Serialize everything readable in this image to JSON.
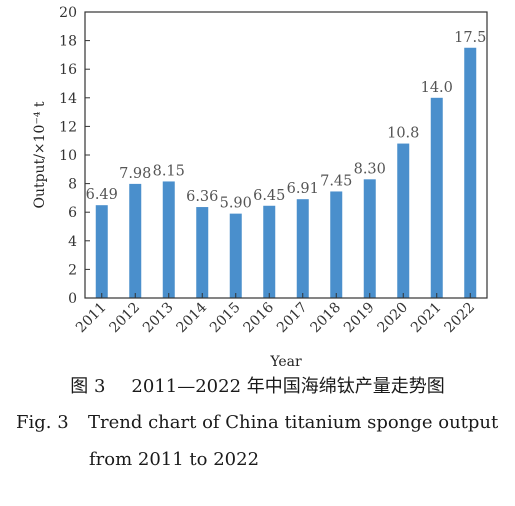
{
  "chart_data": {
    "type": "bar",
    "categories": [
      "2011",
      "2012",
      "2013",
      "2014",
      "2015",
      "2016",
      "2017",
      "2018",
      "2019",
      "2020",
      "2021",
      "2022"
    ],
    "values": [
      6.49,
      7.98,
      8.15,
      6.36,
      5.9,
      6.45,
      6.91,
      7.45,
      8.3,
      10.8,
      14.0,
      17.5
    ],
    "value_labels": [
      "6.49",
      "7.98",
      "8.15",
      "6.36",
      "5.90",
      "6.45",
      "6.91",
      "7.45",
      "8.30",
      "10.8",
      "14.0",
      "17.5"
    ],
    "ylim": [
      0,
      20
    ],
    "yticks": [
      "0",
      "2",
      "4",
      "6",
      "8",
      "10",
      "12",
      "14",
      "16",
      "18",
      "20"
    ],
    "ylabel": "Output/×10⁻⁴ t",
    "xlabel": "Year",
    "bar_color": "#4a8fcc",
    "grid": false
  },
  "caption": {
    "cn_num": "图 3",
    "cn_text": "2011—2022 年中国海绵钛产量走势图",
    "en_num": "Fig. 3",
    "en_line1": "Trend chart of China titanium sponge output",
    "en_line2": "from 2011 to 2022"
  }
}
